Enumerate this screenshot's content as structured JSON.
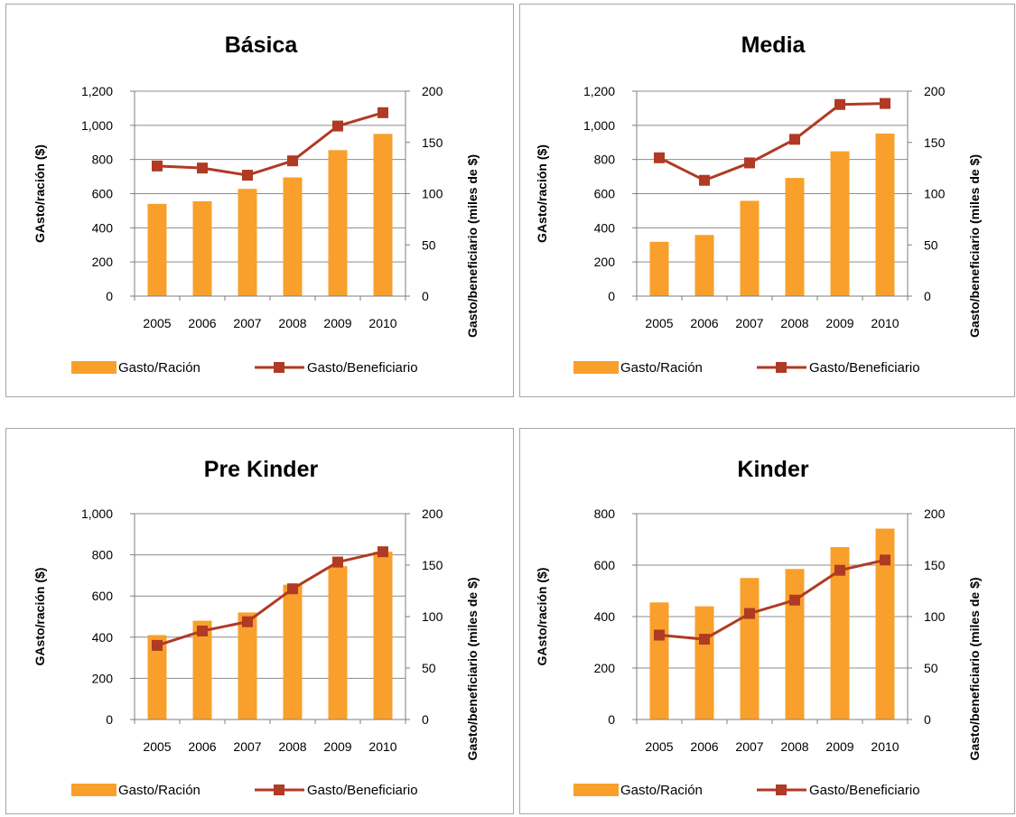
{
  "colors": {
    "bar": "#f8a02b",
    "line": "#b03a24",
    "grid": "#8c8c8c",
    "axis": "#7f7f7f",
    "border": "#a6a6a6"
  },
  "legend": {
    "bar_label": "Gasto/Ración",
    "line_label": "Gasto/Beneficiario"
  },
  "chart_data": [
    {
      "type": "bar",
      "title": "Básica",
      "categories": [
        "2005",
        "2006",
        "2007",
        "2008",
        "2009",
        "2010"
      ],
      "ylabel": "GAsto/ración ($)",
      "y2label": "Gasto/beneficiario (miles de $)",
      "ylim": [
        0,
        1200
      ],
      "yticks": [
        "0",
        "200",
        "400",
        "600",
        "800",
        "1,000",
        "1,200"
      ],
      "y2lim": [
        0,
        200
      ],
      "y2ticks": [
        "0",
        "50",
        "100",
        "150",
        "200"
      ],
      "grid": true,
      "legend_position": "bottom",
      "series": [
        {
          "name": "Gasto/Ración",
          "type": "bar",
          "axis": "left",
          "values": [
            540,
            555,
            628,
            695,
            855,
            950
          ]
        },
        {
          "name": "Gasto/Beneficiario",
          "type": "line",
          "axis": "right",
          "values": [
            127,
            125,
            118,
            132,
            166,
            179
          ]
        }
      ]
    },
    {
      "type": "bar",
      "title": "Media",
      "categories": [
        "2005",
        "2006",
        "2007",
        "2008",
        "2009",
        "2010"
      ],
      "ylabel": "GAsto/ración ($)",
      "y2label": "Gasto/beneficiario (miles de $)",
      "ylim": [
        0,
        1200
      ],
      "yticks": [
        "0",
        "200",
        "400",
        "600",
        "800",
        "1,000",
        "1,200"
      ],
      "y2lim": [
        0,
        200
      ],
      "y2ticks": [
        "0",
        "50",
        "100",
        "150",
        "200"
      ],
      "grid": true,
      "legend_position": "bottom",
      "series": [
        {
          "name": "Gasto/Ración",
          "type": "bar",
          "axis": "left",
          "values": [
            318,
            358,
            558,
            692,
            848,
            952
          ]
        },
        {
          "name": "Gasto/Beneficiario",
          "type": "line",
          "axis": "right",
          "values": [
            135,
            113,
            130,
            153,
            187,
            188
          ]
        }
      ]
    },
    {
      "type": "bar",
      "title": "Pre Kinder",
      "categories": [
        "2005",
        "2006",
        "2007",
        "2008",
        "2009",
        "2010"
      ],
      "ylabel": "GAsto/ración ($)",
      "y2label": "Gasto/beneficiario (miles de $)",
      "ylim": [
        0,
        1000
      ],
      "yticks": [
        "0",
        "200",
        "400",
        "600",
        "800",
        "1,000"
      ],
      "y2lim": [
        0,
        200
      ],
      "y2ticks": [
        "0",
        "50",
        "100",
        "150",
        "200"
      ],
      "grid": true,
      "legend_position": "bottom",
      "series": [
        {
          "name": "Gasto/Ración",
          "type": "bar",
          "axis": "left",
          "values": [
            410,
            480,
            520,
            655,
            745,
            815
          ]
        },
        {
          "name": "Gasto/Beneficiario",
          "type": "line",
          "axis": "right",
          "values": [
            72,
            86,
            95,
            127,
            153,
            163
          ]
        }
      ]
    },
    {
      "type": "bar",
      "title": "Kinder",
      "categories": [
        "2005",
        "2006",
        "2007",
        "2008",
        "2009",
        "2010"
      ],
      "ylabel": "GAsto/ración ($)",
      "y2label": "Gasto/beneficiario (miles de $)",
      "ylim": [
        0,
        800
      ],
      "yticks": [
        "0",
        "200",
        "400",
        "600",
        "800"
      ],
      "y2lim": [
        0,
        200
      ],
      "y2ticks": [
        "0",
        "50",
        "100",
        "150",
        "200"
      ],
      "grid": true,
      "legend_position": "bottom",
      "series": [
        {
          "name": "Gasto/Ración",
          "type": "bar",
          "axis": "left",
          "values": [
            455,
            440,
            550,
            585,
            670,
            742
          ]
        },
        {
          "name": "Gasto/Beneficiario",
          "type": "line",
          "axis": "right",
          "values": [
            82,
            78,
            103,
            116,
            145,
            155
          ]
        }
      ]
    }
  ]
}
